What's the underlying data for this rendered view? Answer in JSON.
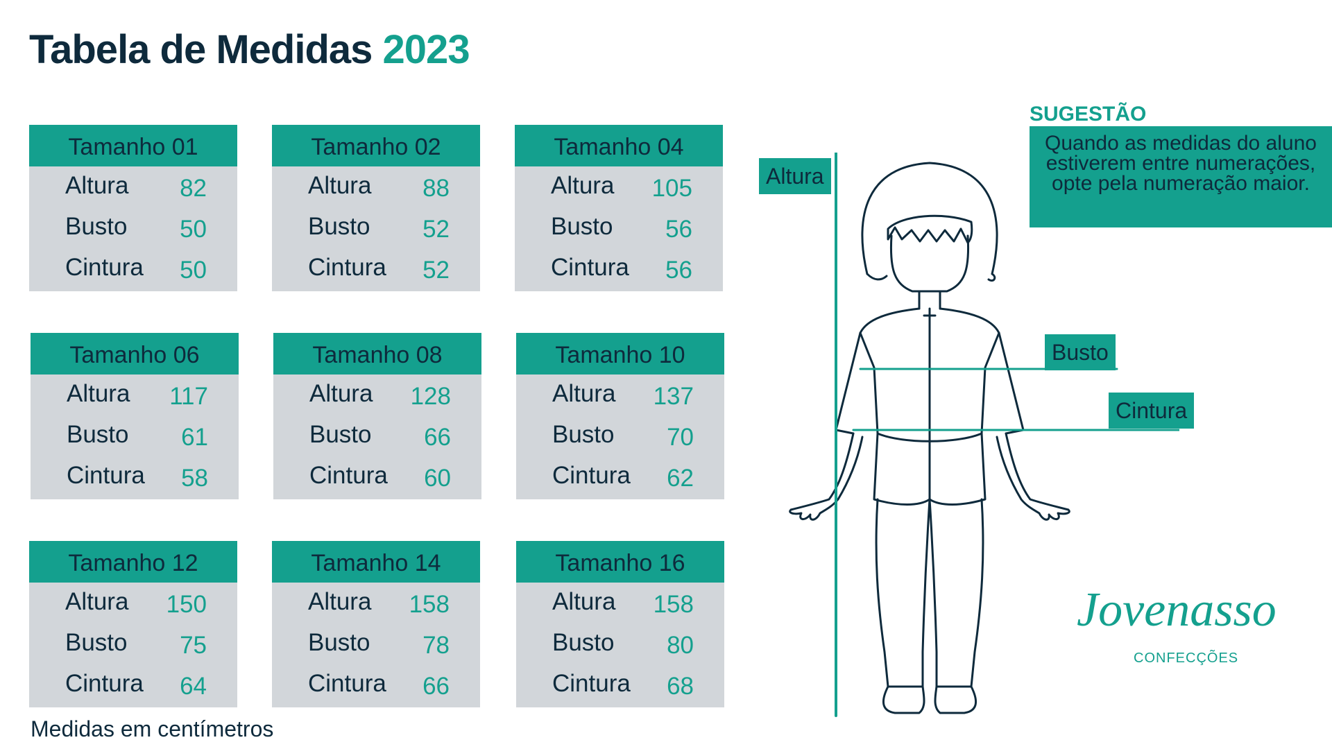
{
  "title": {
    "main": "Tabela de Medidas",
    "year": "2023"
  },
  "sizes": [
    {
      "name": "Tamanho 01",
      "rows": [
        {
          "label": "Altura",
          "value": "82"
        },
        {
          "label": "Busto",
          "value": "50"
        },
        {
          "label": "Cintura",
          "value": "50"
        }
      ]
    },
    {
      "name": "Tamanho 02",
      "rows": [
        {
          "label": "Altura",
          "value": "88"
        },
        {
          "label": "Busto",
          "value": "52"
        },
        {
          "label": "Cintura",
          "value": "52"
        }
      ]
    },
    {
      "name": "Tamanho 04",
      "rows": [
        {
          "label": "Altura",
          "value": "105"
        },
        {
          "label": "Busto",
          "value": "56"
        },
        {
          "label": "Cintura",
          "value": "56"
        }
      ]
    },
    {
      "name": "Tamanho 06",
      "rows": [
        {
          "label": "Altura",
          "value": "117"
        },
        {
          "label": "Busto",
          "value": "61"
        },
        {
          "label": "Cintura",
          "value": "58"
        }
      ]
    },
    {
      "name": "Tamanho 08",
      "rows": [
        {
          "label": "Altura",
          "value": "128"
        },
        {
          "label": "Busto",
          "value": "66"
        },
        {
          "label": "Cintura",
          "value": "60"
        }
      ]
    },
    {
      "name": "Tamanho 10",
      "rows": [
        {
          "label": "Altura",
          "value": "137"
        },
        {
          "label": "Busto",
          "value": "70"
        },
        {
          "label": "Cintura",
          "value": "62"
        }
      ]
    },
    {
      "name": "Tamanho 12",
      "rows": [
        {
          "label": "Altura",
          "value": "150"
        },
        {
          "label": "Busto",
          "value": "75"
        },
        {
          "label": "Cintura",
          "value": "64"
        }
      ]
    },
    {
      "name": "Tamanho 14",
      "rows": [
        {
          "label": "Altura",
          "value": "158"
        },
        {
          "label": "Busto",
          "value": "78"
        },
        {
          "label": "Cintura",
          "value": "66"
        }
      ]
    },
    {
      "name": "Tamanho 16",
      "rows": [
        {
          "label": "Altura",
          "value": "158"
        },
        {
          "label": "Busto",
          "value": "80"
        },
        {
          "label": "Cintura",
          "value": "68"
        }
      ]
    }
  ],
  "footer_note": "Medidas em centímetros",
  "suggestion": {
    "title": "SUGESTÃO",
    "text": "Quando as medidas do aluno estiverem entre numerações, opte pela numeração maior."
  },
  "diagram": {
    "altura_label": "Altura",
    "busto_label": "Busto",
    "cintura_label": "Cintura"
  },
  "logo": {
    "name": "Jovenasso",
    "subtitle": "CONFECÇÕES"
  },
  "colors": {
    "teal": "#14a08e",
    "navy": "#0e2a3c",
    "card_bg": "#d2d6da"
  }
}
